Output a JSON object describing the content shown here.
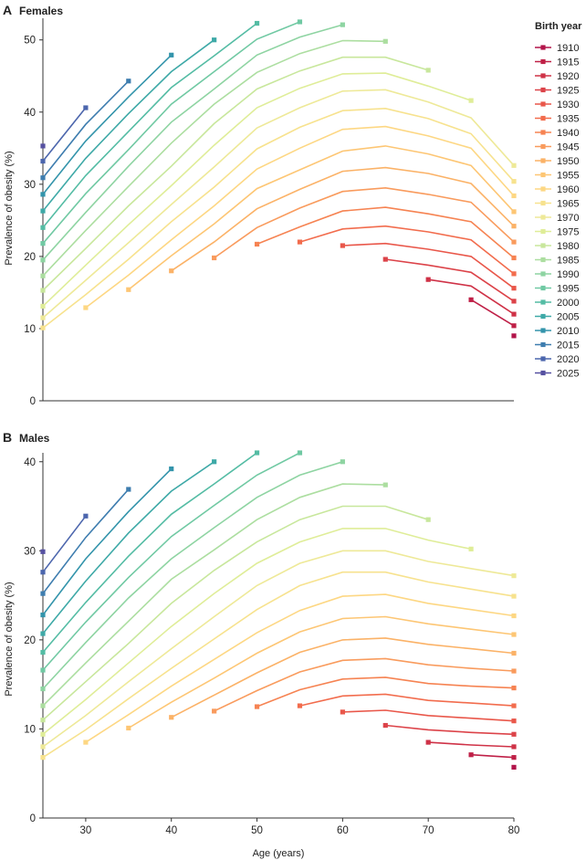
{
  "ages": [
    25,
    30,
    35,
    40,
    45,
    50,
    55,
    60,
    65,
    70,
    75,
    80
  ],
  "chart_data": [
    {
      "type": "line",
      "panel": "A",
      "title": "Females",
      "xlabel": "",
      "ylabel": "Prevalence of obesity (%)",
      "xlim": [
        25,
        80
      ],
      "ylim": [
        0,
        53
      ],
      "yticks": [
        0,
        10,
        20,
        30,
        40,
        50
      ],
      "xticks": [],
      "series": [
        {
          "name": "1910",
          "values": [
            null,
            null,
            null,
            null,
            null,
            null,
            null,
            null,
            null,
            null,
            null,
            9.0
          ]
        },
        {
          "name": "1915",
          "values": [
            null,
            null,
            null,
            null,
            null,
            null,
            null,
            null,
            null,
            null,
            14.0,
            10.4
          ]
        },
        {
          "name": "1920",
          "values": [
            null,
            null,
            null,
            null,
            null,
            null,
            null,
            null,
            null,
            16.8,
            15.9,
            12.0
          ]
        },
        {
          "name": "1925",
          "values": [
            null,
            null,
            null,
            null,
            null,
            null,
            null,
            null,
            19.6,
            18.8,
            17.8,
            13.8
          ]
        },
        {
          "name": "1930",
          "values": [
            null,
            null,
            null,
            null,
            null,
            null,
            null,
            21.5,
            21.8,
            21.0,
            20.0,
            15.6
          ]
        },
        {
          "name": "1935",
          "values": [
            null,
            null,
            null,
            null,
            null,
            null,
            22.0,
            23.8,
            24.2,
            23.4,
            22.3,
            17.6
          ]
        },
        {
          "name": "1940",
          "values": [
            null,
            null,
            null,
            null,
            null,
            21.7,
            24.1,
            26.3,
            26.8,
            25.9,
            24.8,
            19.8
          ]
        },
        {
          "name": "1945",
          "values": [
            null,
            null,
            null,
            null,
            19.8,
            24.0,
            26.7,
            29.0,
            29.5,
            28.6,
            27.5,
            22.0
          ]
        },
        {
          "name": "1950",
          "values": [
            null,
            null,
            null,
            18.0,
            22.0,
            26.6,
            29.3,
            31.8,
            32.3,
            31.5,
            30.1,
            24.2
          ]
        },
        {
          "name": "1955",
          "values": [
            null,
            null,
            15.4,
            20.1,
            24.5,
            29.4,
            32.0,
            34.6,
            35.3,
            34.2,
            32.6,
            26.2
          ]
        },
        {
          "name": "1960",
          "values": [
            null,
            12.9,
            17.4,
            22.3,
            27.0,
            32.1,
            35.0,
            37.6,
            38.0,
            36.7,
            35.0,
            28.4
          ]
        },
        {
          "name": "1965",
          "values": [
            10.1,
            14.7,
            19.6,
            24.8,
            29.6,
            34.9,
            37.9,
            40.2,
            40.5,
            39.1,
            37.0,
            30.4
          ]
        },
        {
          "name": "1970",
          "values": [
            11.5,
            16.7,
            21.9,
            27.2,
            32.4,
            37.8,
            40.6,
            42.9,
            43.1,
            41.4,
            39.2,
            32.6
          ]
        },
        {
          "name": "1975",
          "values": [
            13.1,
            18.8,
            24.4,
            29.8,
            35.4,
            40.6,
            43.3,
            45.3,
            45.4,
            43.6,
            41.6,
            null
          ]
        },
        {
          "name": "1980",
          "values": [
            15.3,
            21.1,
            27.0,
            32.5,
            38.4,
            43.2,
            45.7,
            47.6,
            47.6,
            45.8,
            null,
            null
          ]
        },
        {
          "name": "1985",
          "values": [
            17.3,
            23.6,
            29.7,
            35.7,
            41.1,
            45.5,
            48.1,
            49.9,
            49.8,
            null,
            null,
            null
          ]
        },
        {
          "name": "1990",
          "values": [
            19.5,
            26.1,
            32.5,
            38.6,
            43.2,
            47.9,
            50.4,
            52.1,
            null,
            null,
            null,
            null
          ]
        },
        {
          "name": "1995",
          "values": [
            21.8,
            28.7,
            34.8,
            41.1,
            45.6,
            50.1,
            52.5,
            null,
            null,
            null,
            null,
            null
          ]
        },
        {
          "name": "2000",
          "values": [
            24.0,
            31.2,
            37.3,
            43.4,
            47.8,
            52.3,
            null,
            null,
            null,
            null,
            null,
            null
          ]
        },
        {
          "name": "2005",
          "values": [
            26.3,
            33.6,
            39.8,
            45.6,
            50.0,
            null,
            null,
            null,
            null,
            null,
            null,
            null
          ]
        },
        {
          "name": "2010",
          "values": [
            28.6,
            36.0,
            42.1,
            47.9,
            null,
            null,
            null,
            null,
            null,
            null,
            null,
            null
          ]
        },
        {
          "name": "2015",
          "values": [
            30.9,
            38.3,
            44.3,
            null,
            null,
            null,
            null,
            null,
            null,
            null,
            null,
            null
          ]
        },
        {
          "name": "2020",
          "values": [
            33.2,
            40.6,
            null,
            null,
            null,
            null,
            null,
            null,
            null,
            null,
            null,
            null
          ]
        },
        {
          "name": "2025",
          "values": [
            35.3,
            null,
            null,
            null,
            null,
            null,
            null,
            null,
            null,
            null,
            null,
            null
          ]
        }
      ]
    },
    {
      "type": "line",
      "panel": "B",
      "title": "Males",
      "xlabel": "Age (years)",
      "ylabel": "Prevalence of obesity (%)",
      "xlim": [
        25,
        80
      ],
      "ylim": [
        0,
        41
      ],
      "yticks": [
        0,
        10,
        20,
        30,
        40
      ],
      "xticks": [
        30,
        40,
        50,
        60,
        70,
        80
      ],
      "series": [
        {
          "name": "1910",
          "values": [
            null,
            null,
            null,
            null,
            null,
            null,
            null,
            null,
            null,
            null,
            null,
            5.7
          ]
        },
        {
          "name": "1915",
          "values": [
            null,
            null,
            null,
            null,
            null,
            null,
            null,
            null,
            null,
            null,
            7.1,
            6.8
          ]
        },
        {
          "name": "1920",
          "values": [
            null,
            null,
            null,
            null,
            null,
            null,
            null,
            null,
            null,
            8.5,
            8.2,
            8.0
          ]
        },
        {
          "name": "1925",
          "values": [
            null,
            null,
            null,
            null,
            null,
            null,
            null,
            null,
            10.4,
            9.9,
            9.6,
            9.4
          ]
        },
        {
          "name": "1930",
          "values": [
            null,
            null,
            null,
            null,
            null,
            null,
            null,
            11.9,
            12.1,
            11.5,
            11.2,
            10.9
          ]
        },
        {
          "name": "1935",
          "values": [
            null,
            null,
            null,
            null,
            null,
            null,
            12.6,
            13.7,
            13.9,
            13.2,
            12.9,
            12.6
          ]
        },
        {
          "name": "1940",
          "values": [
            null,
            null,
            null,
            null,
            null,
            12.5,
            14.4,
            15.6,
            15.8,
            15.1,
            14.8,
            14.6
          ]
        },
        {
          "name": "1945",
          "values": [
            null,
            null,
            null,
            null,
            12.0,
            14.3,
            16.4,
            17.7,
            17.9,
            17.2,
            16.8,
            16.5
          ]
        },
        {
          "name": "1950",
          "values": [
            null,
            null,
            null,
            11.3,
            13.8,
            16.3,
            18.6,
            20.0,
            20.2,
            19.5,
            19.0,
            18.5
          ]
        },
        {
          "name": "1955",
          "values": [
            null,
            null,
            10.1,
            13.0,
            15.7,
            18.5,
            20.9,
            22.4,
            22.6,
            21.8,
            21.2,
            20.6
          ]
        },
        {
          "name": "1960",
          "values": [
            null,
            8.5,
            11.6,
            14.8,
            17.8,
            20.8,
            23.3,
            24.9,
            25.1,
            24.1,
            23.4,
            22.7
          ]
        },
        {
          "name": "1965",
          "values": [
            6.8,
            9.9,
            13.4,
            16.8,
            20.1,
            23.4,
            26.1,
            27.6,
            27.6,
            26.5,
            25.7,
            24.9
          ]
        },
        {
          "name": "1970",
          "values": [
            8.0,
            11.5,
            15.3,
            19.0,
            22.6,
            26.1,
            28.6,
            30.0,
            30.0,
            28.8,
            28.0,
            27.2
          ]
        },
        {
          "name": "1975",
          "values": [
            9.4,
            13.3,
            17.4,
            21.5,
            25.2,
            28.6,
            31.0,
            32.5,
            32.5,
            31.2,
            30.2,
            null
          ]
        },
        {
          "name": "1980",
          "values": [
            11.0,
            15.3,
            19.6,
            24.1,
            27.8,
            31.0,
            33.5,
            35.0,
            35.0,
            33.5,
            null,
            null
          ]
        },
        {
          "name": "1985",
          "values": [
            12.6,
            17.4,
            22.1,
            26.8,
            30.1,
            33.5,
            36.0,
            37.5,
            37.4,
            null,
            null,
            null
          ]
        },
        {
          "name": "1990",
          "values": [
            14.5,
            19.7,
            24.7,
            29.1,
            32.6,
            36.0,
            38.5,
            40.0,
            null,
            null,
            null,
            null
          ]
        },
        {
          "name": "1995",
          "values": [
            16.6,
            22.0,
            27.0,
            31.6,
            35.1,
            38.5,
            41.0,
            null,
            null,
            null,
            null,
            null
          ]
        },
        {
          "name": "2000",
          "values": [
            18.6,
            24.2,
            29.4,
            34.1,
            37.5,
            41.0,
            null,
            null,
            null,
            null,
            null,
            null
          ]
        },
        {
          "name": "2005",
          "values": [
            20.7,
            26.6,
            32.0,
            36.7,
            40.0,
            null,
            null,
            null,
            null,
            null,
            null,
            null
          ]
        },
        {
          "name": "2010",
          "values": [
            22.8,
            29.1,
            34.4,
            39.2,
            null,
            null,
            null,
            null,
            null,
            null,
            null,
            null
          ]
        },
        {
          "name": "2015",
          "values": [
            25.2,
            31.5,
            36.9,
            null,
            null,
            null,
            null,
            null,
            null,
            null,
            null,
            null
          ]
        },
        {
          "name": "2020",
          "values": [
            27.6,
            33.9,
            null,
            null,
            null,
            null,
            null,
            null,
            null,
            null,
            null,
            null
          ]
        },
        {
          "name": "2025",
          "values": [
            29.9,
            null,
            null,
            null,
            null,
            null,
            null,
            null,
            null,
            null,
            null,
            null
          ]
        }
      ]
    }
  ],
  "legend": {
    "title": "Birth year",
    "placement": "right of panel A",
    "items": [
      "1910",
      "1915",
      "1920",
      "1925",
      "1930",
      "1935",
      "1940",
      "1945",
      "1950",
      "1955",
      "1960",
      "1965",
      "1970",
      "1975",
      "1980",
      "1985",
      "1990",
      "1995",
      "2000",
      "2005",
      "2010",
      "2015",
      "2020",
      "2025"
    ]
  },
  "colors": [
    "#b2144a",
    "#bf2047",
    "#cf3247",
    "#dc4349",
    "#e9574a",
    "#f26c4d",
    "#f68352",
    "#f99b5d",
    "#fbb267",
    "#fdc674",
    "#fdd783",
    "#f7e28e",
    "#eee998",
    "#dfed98",
    "#c8e79c",
    "#acdea0",
    "#8ed4a2",
    "#70c9a3",
    "#54bca4",
    "#3ea9a7",
    "#3394ab",
    "#3e7daf",
    "#4c66ad",
    "#5651a1"
  ]
}
